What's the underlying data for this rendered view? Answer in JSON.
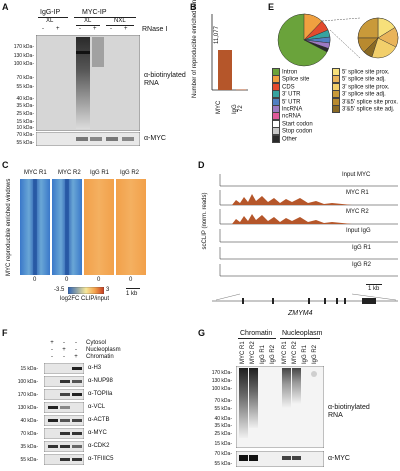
{
  "panels": {
    "A": {
      "label": "A",
      "groups": [
        "IgG-IP",
        "MYC-IP"
      ],
      "conditions": [
        "XL",
        "XL",
        "NXL"
      ],
      "rnase_header": [
        "-",
        "+",
        "-",
        "+",
        "-",
        "+"
      ],
      "rnase_label": "RNase I",
      "mw": [
        "170 kDa-",
        "130 kDa-",
        "100 kDa-",
        "70 kDa-",
        "55 kDa-",
        "40 kDa-",
        "35 kDa-",
        "25 kDa-",
        "15 kDa-",
        "10 kDa-"
      ],
      "mw2": [
        "70 kDa-",
        "55 kDa-"
      ],
      "blot_label": "α-biotinylated RNA",
      "blot2_label": "α-MYC"
    },
    "B": {
      "label": "B",
      "ylabel": "Number of reproducible enriched windows",
      "bars": [
        "MYC",
        "IgG"
      ],
      "values_text": [
        "11,077",
        "72"
      ]
    },
    "C": {
      "label": "C",
      "columns": [
        "MYC R1",
        "MYC R2",
        "IgG R1",
        "IgG R2"
      ],
      "ylabel": "MYC reproducible enriched windows",
      "zero": "0",
      "scale_min": "-3.5",
      "scale_max": "3",
      "scale_label": "log2FC CLIP/input",
      "scalebar": "1 kb"
    },
    "D": {
      "label": "D",
      "ylabel": "scCLIP (norm. reads)",
      "tracks": [
        "Input MYC",
        "MYC R1",
        "MYC R2",
        "Input IgG",
        "IgG R1",
        "IgG R2"
      ],
      "scalebar": "1 kb",
      "gene": "ZMYM4"
    },
    "E": {
      "label": "E",
      "legend": [
        {
          "name": "Intron",
          "color": "#6aa33b"
        },
        {
          "name": "Splice site",
          "color": "#f0a040"
        },
        {
          "name": "CDS",
          "color": "#e34a2e"
        },
        {
          "name": "3' UTR",
          "color": "#36a3a0"
        },
        {
          "name": "5' UTR",
          "color": "#4f7fc2"
        },
        {
          "name": "lncRNA",
          "color": "#9c7ac2"
        },
        {
          "name": "ncRNA",
          "color": "#e05a9a"
        },
        {
          "name": "Start codon",
          "color": "#ffffff"
        },
        {
          "name": "Stop codon",
          "color": "#c9c9c9"
        },
        {
          "name": "Other",
          "color": "#2a2a2a"
        },
        {
          "name": "5' splice site prox.",
          "color": "#f7e07a"
        },
        {
          "name": "5' splice site adj.",
          "color": "#e9b45a"
        },
        {
          "name": "3' splice site prox.",
          "color": "#f2cf6b"
        },
        {
          "name": "3' splice site adj.",
          "color": "#c99a3a"
        },
        {
          "name": "3'&5' splice site prox.",
          "color": "#b98a2f"
        },
        {
          "name": "3'&5' splice site adj.",
          "color": "#8a6a24"
        }
      ]
    },
    "F": {
      "label": "F",
      "fractions": [
        "Cytosol",
        "Nucleoplasm",
        "Chromatin"
      ],
      "signs": [
        [
          "+",
          "-",
          "-"
        ],
        [
          "-",
          "+",
          "-"
        ],
        [
          "-",
          "-",
          "+"
        ]
      ],
      "rows": [
        {
          "mw": "15 kDa-",
          "label": "α-H3"
        },
        {
          "mw": "100 kDa-",
          "label": "α-NUP98"
        },
        {
          "mw": "170 kDa-",
          "label": "α-TOPIIa"
        },
        {
          "mw": "130 kDa-",
          "label": "α-VCL"
        },
        {
          "mw": "40 kDa-",
          "label": "α-ACTB"
        },
        {
          "mw": "70 kDa-",
          "label": "α-MYC"
        },
        {
          "mw": "35 kDa-",
          "label": "α-CDK2"
        },
        {
          "mw": "55 kDa-",
          "label": "α-TFIIIC5"
        }
      ]
    },
    "G": {
      "label": "G",
      "groups": [
        "Chromatin",
        "Nucleoplasm"
      ],
      "lanes": [
        "MYC R1",
        "MYC R2",
        "IgG R1",
        "IgG R2",
        "MYC R1",
        "MYC R2",
        "IgG R1",
        "IgG R2"
      ],
      "mw": [
        "170 kDa-",
        "130 kDa-",
        "100 kDa-",
        "70 kDa-",
        "55 kDa-",
        "40 kDa-",
        "35 kDa-",
        "25 kDa-",
        "15 kDa-"
      ],
      "mw2": [
        "70 kDa-",
        "55 kDa-"
      ],
      "blot_label": "α-biotinylated RNA",
      "blot2_label": "α-MYC"
    }
  }
}
